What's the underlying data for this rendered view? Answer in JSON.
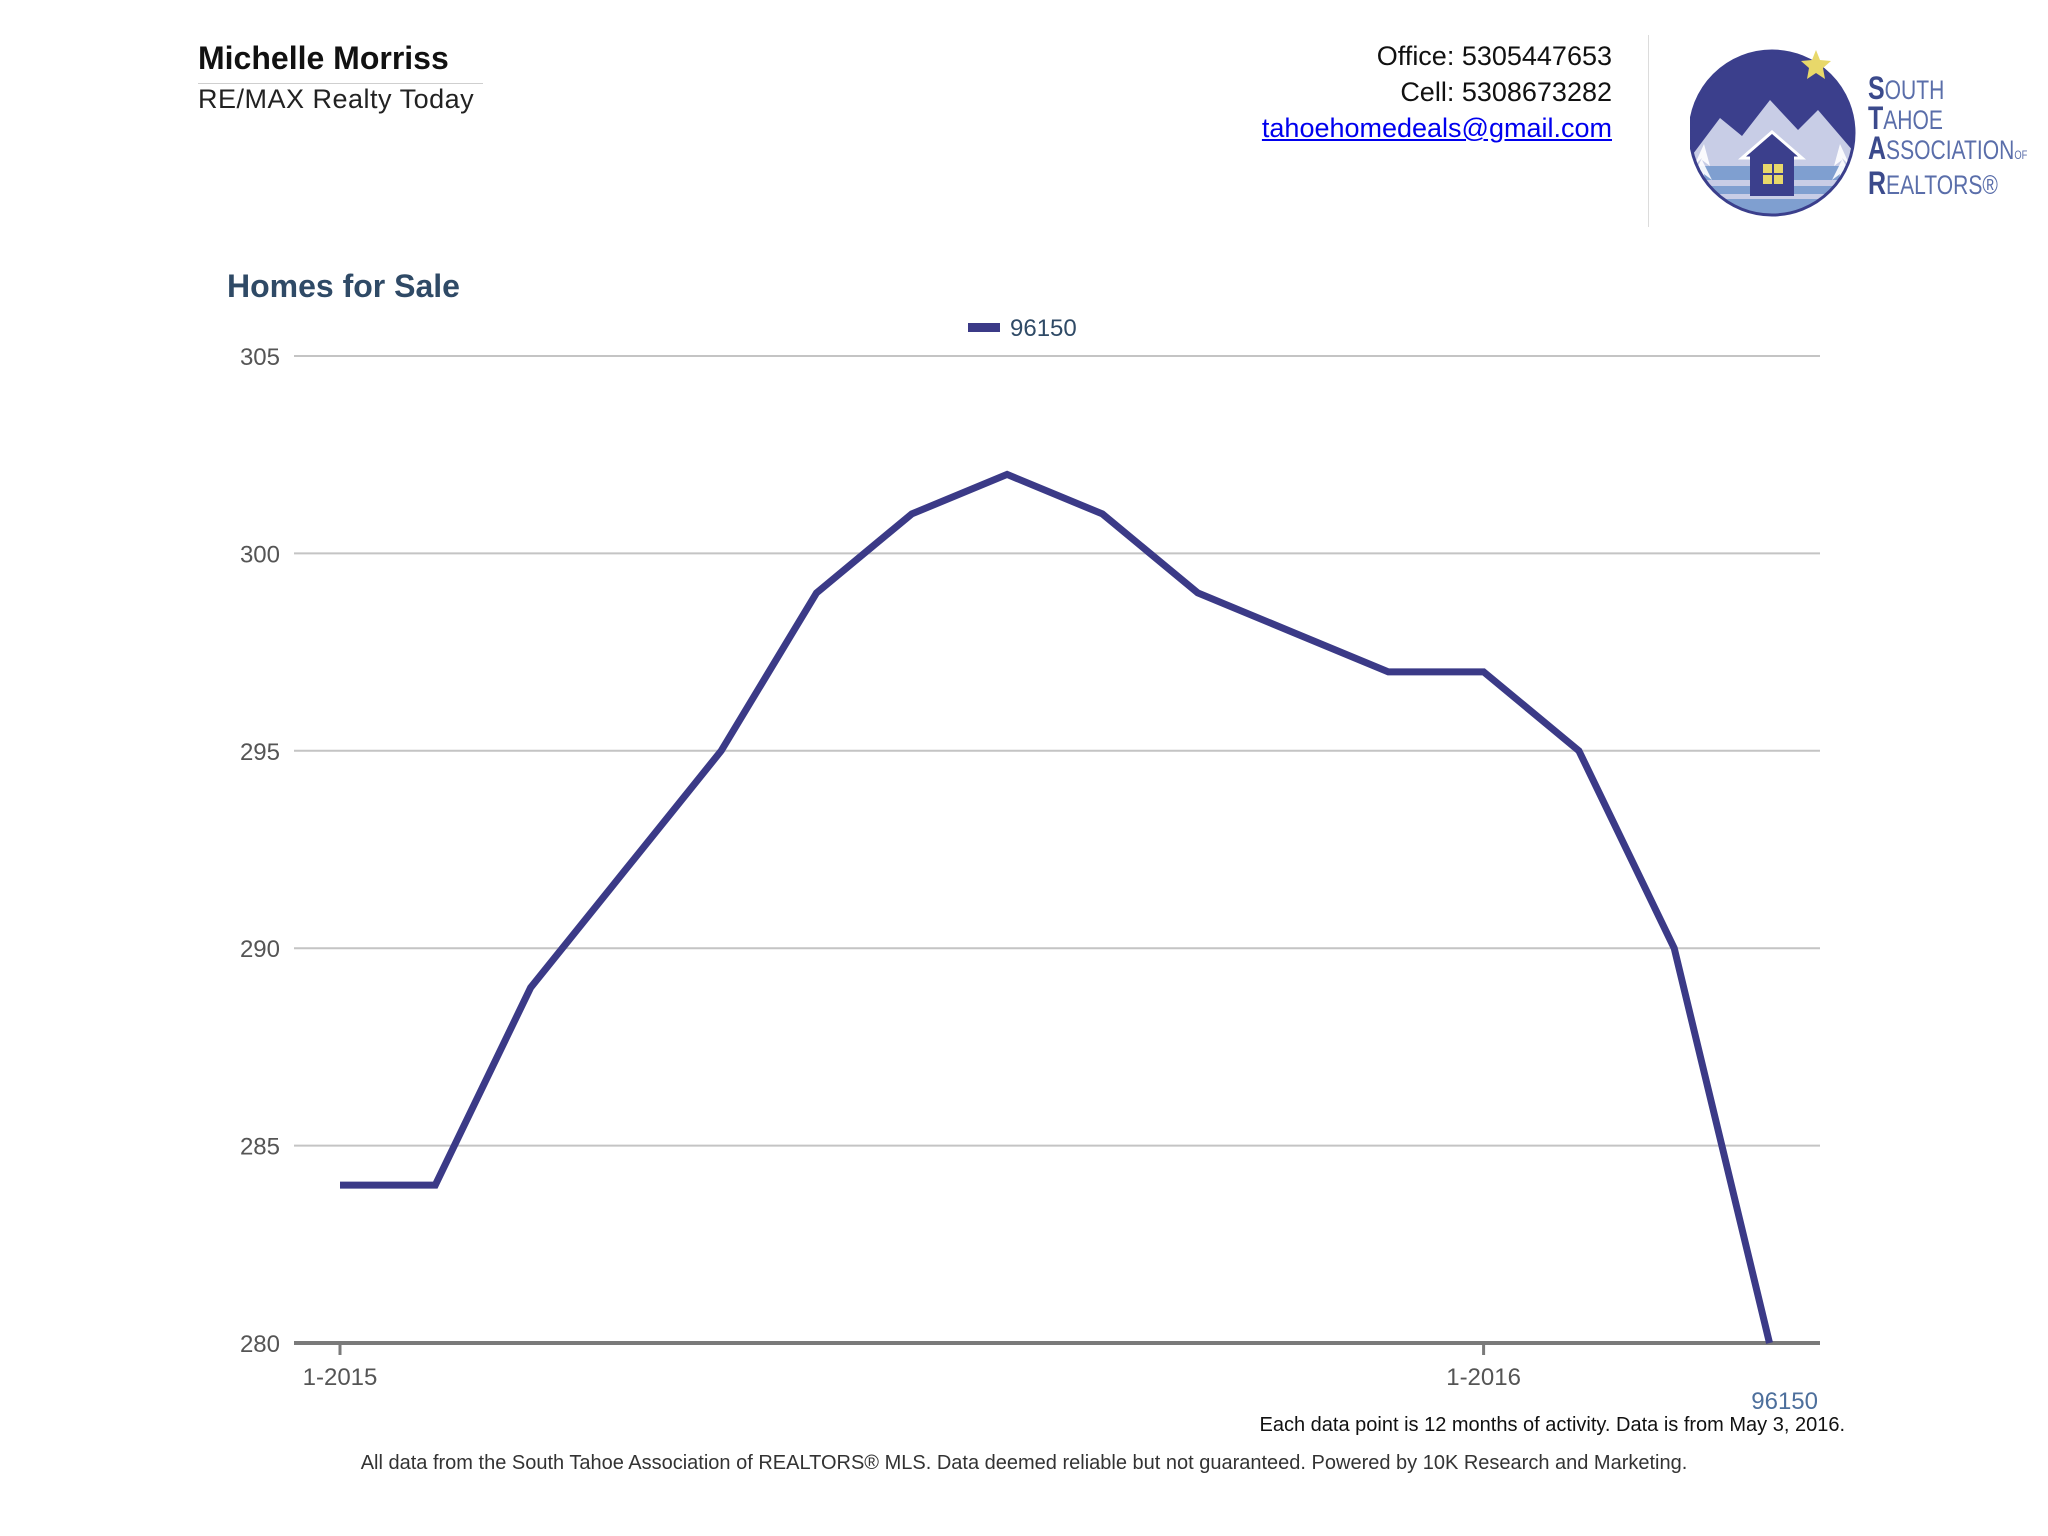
{
  "agent": {
    "name": "Michelle Morriss",
    "company": "RE/MAX Realty Today"
  },
  "contact": {
    "office": "Office: 5305447653",
    "cell": "Cell: 5308673282",
    "email": "tahoehomedeals@gmail.com"
  },
  "logo": {
    "line1_cap": "S",
    "line1_rest": "OUTH",
    "line2_cap": "T",
    "line2_rest": "AHOE",
    "line3_cap": "A",
    "line3_rest": "SSOCIATION",
    "line3_tiny": "OF",
    "line4_cap": "R",
    "line4_rest": "EALTORS®",
    "colors": {
      "circle": "#3b3f8c",
      "mountain": "#c8cde6",
      "water": "#7f9fd0",
      "house": "#3b3f8c",
      "window": "#e8d86a",
      "star": "#e8d86a"
    }
  },
  "chart_data": {
    "type": "line",
    "title": "Homes for Sale",
    "x_tick_labels": [
      "1-2015",
      "1-2016"
    ],
    "x_tick_indices": [
      0,
      12
    ],
    "ylim": [
      280,
      305
    ],
    "y_ticks": [
      280,
      285,
      290,
      295,
      300,
      305
    ],
    "grid": true,
    "legend": "top-center",
    "end_label": "96150",
    "series": [
      {
        "name": "96150",
        "color": "#3b3a87",
        "values": [
          284,
          284,
          289,
          292,
          295,
          299,
          301,
          302,
          301,
          299,
          298,
          297,
          297,
          295,
          290,
          280
        ]
      }
    ]
  },
  "footnotes": {
    "activity": "Each data point is 12 months of activity. Data is from May 3, 2016.",
    "source": "All data from the South Tahoe Association of REALTORS® MLS. Data deemed reliable but not guaranteed. Powered by 10K Research and Marketing."
  }
}
